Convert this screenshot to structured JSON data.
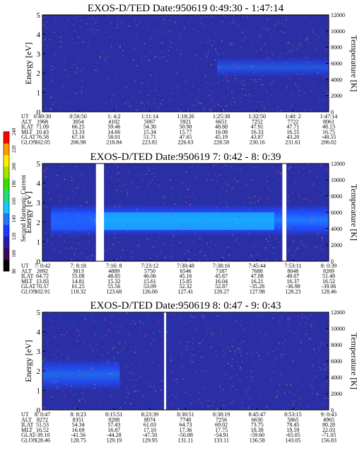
{
  "colorbar": {
    "label": "Second Harmonic Current",
    "ticks": [
      "80",
      "100",
      "120",
      "140",
      "160",
      "180",
      "200",
      "220",
      "240"
    ],
    "colors": [
      "#000000",
      "#3a0a55",
      "#2a1aa8",
      "#1f38ff",
      "#1e7bff",
      "#19c8ff",
      "#22dd7a",
      "#38e000",
      "#a8e400",
      "#ffee00",
      "#ff9a00",
      "#ff0000"
    ]
  },
  "orbit_labels": [
    "UT",
    "ALT",
    "ILAT",
    "MLT",
    "GLAT",
    "GLON"
  ],
  "chart_data": [
    {
      "type": "heatmap",
      "title": "EXOS-D/TED   Date:950619  0:49:30 - 1:47:14",
      "ylabel": "Energy [eV]",
      "ylabel_right": "Temperature [K]",
      "ylim": [
        0,
        5
      ],
      "ylim_right": [
        0,
        12000
      ],
      "yticks": [
        "0",
        "1",
        "2",
        "3",
        "4",
        "5"
      ],
      "yticks_right": [
        "0",
        "2000",
        "4000",
        "6000",
        "8000",
        "10000",
        "12000"
      ],
      "gaps": [],
      "band": {
        "start": 0.61,
        "end": 1.0,
        "low": 1.8,
        "high": 2.8,
        "max": 0.55
      },
      "band_tongues": [],
      "orbit": [
        [
          "0:49:30",
          "1968",
          "71.09",
          "10.43",
          "76.58",
          "162.05"
        ],
        [
          "0:56:50",
          "3054",
          "66.25",
          "13.33",
          "67.16",
          "206.98"
        ],
        [
          "1: 4:2",
          "4102",
          "59.46",
          "14.66",
          "58.01",
          "218.84"
        ],
        [
          "1:11:14",
          "5067",
          "54.30",
          "15.34",
          "51.71",
          "223.81"
        ],
        [
          "1:18:26",
          "5921",
          "50.90",
          "15.77",
          "47.65",
          "226.63"
        ],
        [
          "1:25:38",
          "6651",
          "48.88",
          "16.08",
          "45.19",
          "228.58"
        ],
        [
          "1:32:50",
          "7252",
          "47.91",
          "16.33",
          "43.87",
          "230.16"
        ],
        [
          "1:40: 2",
          "7722",
          "47.71",
          "16.55",
          "43.20",
          "231.61"
        ],
        [
          "1:47:14",
          "8061",
          "48.13",
          "16.75",
          "-48.55",
          "206.02"
        ]
      ]
    },
    {
      "type": "heatmap",
      "title": "EXOS-D/TED   Date:950619  7: 0:42 - 8: 0:39",
      "ylabel": "Energy [eV]",
      "ylabel_right": "Temperature [K]",
      "ylim": [
        0,
        5
      ],
      "ylim_right": [
        0,
        12000
      ],
      "yticks": [
        "0",
        "1",
        "2",
        "3",
        "4",
        "5"
      ],
      "yticks_right": [
        "0",
        "2000",
        "4000",
        "6000",
        "8000",
        "10000",
        "12000"
      ],
      "gaps": [
        [
          0.187,
          0.215
        ],
        [
          0.838,
          0.852
        ]
      ],
      "band": {
        "start": 0.03,
        "end": 1.0,
        "low": 1.3,
        "high": 2.9,
        "max": 1.0
      },
      "band_tongues": [
        [
          0.03,
          0.18,
          1.6,
          2.5
        ]
      ],
      "orbit": [
        [
          "7: 0:42",
          "2692",
          "64.72",
          "13.83",
          "70.37",
          "102.91"
        ],
        [
          "7: 8:18",
          "3813",
          "55.08",
          "14.81",
          "61.25",
          "118.32"
        ],
        [
          "7:16: 8",
          "4889",
          "48.85",
          "15.32",
          "55.56",
          "123.68"
        ],
        [
          "7:23:12",
          "5750",
          "46.06",
          "15.61",
          "53.09",
          "126.00"
        ],
        [
          "7:30:48",
          "6546",
          "45.16",
          "15.85",
          "52.32",
          "127.41"
        ],
        [
          "7:38:16",
          "7187",
          "45.67",
          "16.04",
          "52.87",
          "128.27"
        ],
        [
          "7:45:44",
          "7688",
          "47.08",
          "16.21",
          "-35.28",
          "127.98"
        ],
        [
          "7:53:11",
          "8048",
          "49.07",
          "16.37",
          "-36.98",
          "128.23"
        ],
        [
          "8: 0:39",
          "8269",
          "51.48",
          "16.52",
          "-39.06",
          "128.46"
        ]
      ]
    },
    {
      "type": "heatmap",
      "title": "EXOS-D/TED   Date:950619  8: 0:47 - 9: 0:43",
      "ylabel": "Energy [eV]",
      "ylabel_right": "Temperature [K]",
      "ylim": [
        0,
        5
      ],
      "ylim_right": [
        0,
        12000
      ],
      "yticks": [
        "0",
        "1",
        "2",
        "3",
        "4",
        "5"
      ],
      "yticks_right": [
        "0",
        "2000",
        "4000",
        "6000",
        "8000",
        "10000",
        "12000"
      ],
      "gaps": [
        [
          0.425,
          0.432
        ]
      ],
      "band": {
        "start": 0.0,
        "end": 0.27,
        "low": 1.0,
        "high": 2.6,
        "max": 0.75
      },
      "band_tongues": [],
      "orbit": [
        [
          "8: 0:47",
          "8272",
          "51.53",
          "16.52",
          "-39.10",
          "128.46"
        ],
        [
          "8: 8:23",
          "8351",
          "54.34",
          "16.69",
          "-41.56",
          "128.75"
        ],
        [
          "8:15:51",
          "8288",
          "57.43",
          "16.87",
          "-44.28",
          "129.19"
        ],
        [
          "8:23:39",
          "8074",
          "61.03",
          "17.10",
          "-47.50",
          "129.95"
        ],
        [
          "8:30:51",
          "7740",
          "64.73",
          "17.36",
          "-50.88",
          "131.11"
        ],
        [
          "8:38:19",
          "7256",
          "69.02",
          "17.75",
          "-54.91",
          "133.11"
        ],
        [
          "8:45:47",
          "6630",
          "73.75",
          "18.38",
          "-59.60",
          "136.58"
        ],
        [
          "8:53:15",
          "5865",
          "78.45",
          "19.59",
          "-65.05",
          "143.05"
        ],
        [
          "9: 0:43",
          "4965",
          "80.28",
          "22.03",
          "-71.05",
          "156.83"
        ]
      ]
    }
  ]
}
